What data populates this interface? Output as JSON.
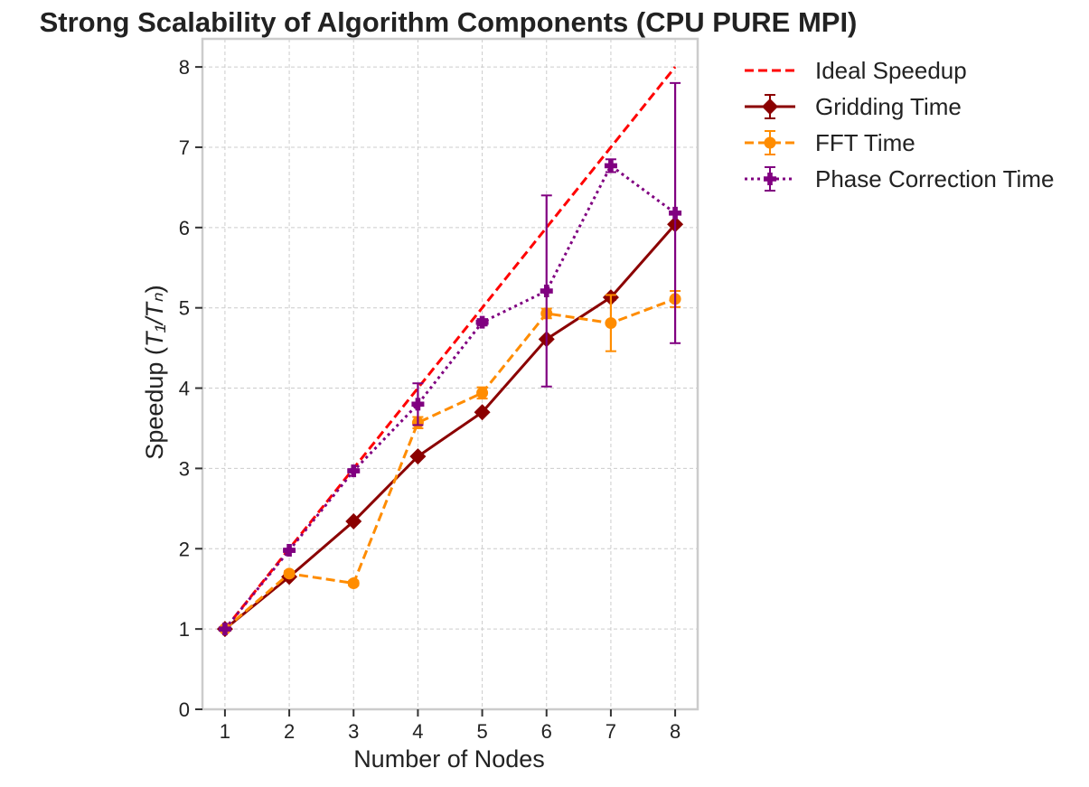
{
  "chart_data": {
    "type": "line",
    "title": "Strong Scalability of Algorithm Components (CPU PURE MPI)",
    "xlabel": "Number of Nodes",
    "ylabel_prefix": "Speedup (",
    "ylabel_math": "T₁/Tₙ",
    "ylabel_suffix": ")",
    "xlim": [
      0.65,
      8.35
    ],
    "ylim": [
      0,
      8.35
    ],
    "xticks": [
      1,
      2,
      3,
      4,
      5,
      6,
      7,
      8
    ],
    "yticks": [
      0,
      1,
      2,
      3,
      4,
      5,
      6,
      7,
      8
    ],
    "grid": true,
    "legend_position": "outside top-right",
    "x": [
      1,
      2,
      3,
      4,
      5,
      6,
      7,
      8
    ],
    "series": [
      {
        "name": "Ideal Speedup",
        "values": [
          1,
          2,
          3,
          4,
          5,
          6,
          7,
          8
        ],
        "errors": null,
        "color": "#ff0000",
        "linestyle": "dashed",
        "marker": "none"
      },
      {
        "name": "Gridding Time",
        "values": [
          1.0,
          1.65,
          2.34,
          3.15,
          3.7,
          4.61,
          5.13,
          6.04
        ],
        "errors": [
          0.0,
          0.02,
          0.02,
          0.02,
          0.02,
          0.02,
          0.03,
          0.02
        ],
        "color": "#8b0000",
        "linestyle": "solid",
        "marker": "diamond"
      },
      {
        "name": "FFT Time",
        "values": [
          1.0,
          1.69,
          1.57,
          3.57,
          3.94,
          4.93,
          4.81,
          5.11
        ],
        "errors": [
          0.0,
          0.03,
          0.03,
          0.07,
          0.07,
          0.06,
          0.35,
          0.1
        ],
        "color": "#ff8c00",
        "linestyle": "dashed",
        "marker": "circle"
      },
      {
        "name": "Phase Correction Time",
        "values": [
          1.0,
          1.98,
          2.97,
          3.8,
          4.82,
          5.21,
          6.77,
          6.18
        ],
        "errors": [
          0.0,
          0.02,
          0.02,
          0.26,
          0.04,
          1.19,
          0.08,
          1.62
        ],
        "color": "#800080",
        "linestyle": "dotted",
        "marker": "plus"
      }
    ]
  }
}
